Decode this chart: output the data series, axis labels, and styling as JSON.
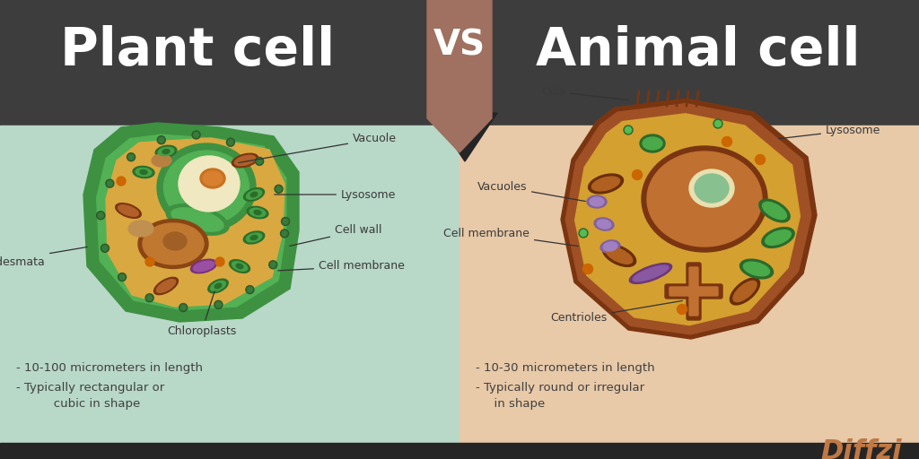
{
  "title_left": "Plant cell",
  "title_right": "Animal cell",
  "vs_text": "VS",
  "header_bg": "#3d3d3d",
  "left_bg": "#b8d8c8",
  "right_bg": "#e8c9a8",
  "vs_banner_color": "#a07060",
  "vs_shadow_color": "#252525",
  "title_color": "#ffffff",
  "label_color": "#3a3a3a",
  "bullet_color": "#404040",
  "plant_bullets": [
    "- 10-100 micrometers in length",
    "- Typically rectangular or",
    "       cubic in shape"
  ],
  "animal_bullets": [
    "- 10-30 micrometers in length",
    "- Typically round or irregular",
    "  in shape"
  ],
  "diffzi_color": "#c07845",
  "bottom_bar_color": "#252525"
}
